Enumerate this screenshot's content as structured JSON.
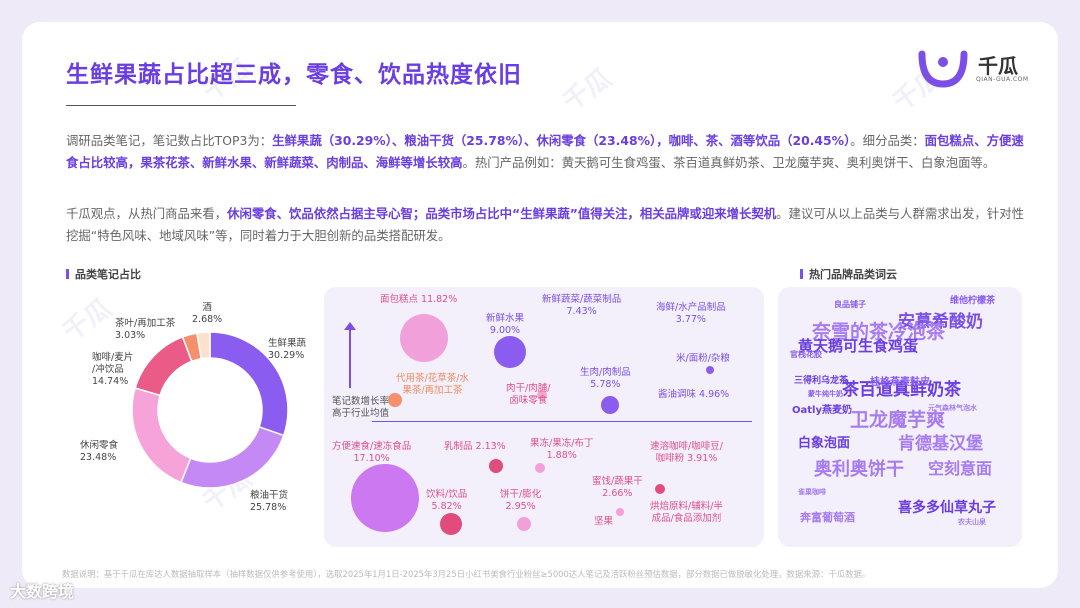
{
  "title": "生鲜果蔬占比超三成，零食、饮品热度依旧",
  "logo": {
    "name": "千瓜",
    "sub": "QIAN-GUA.COM"
  },
  "paragraph1": {
    "t1": "调研品类笔记，笔记数占比TOP3为：",
    "b1": "生鲜果蔬（30.29%）、粮油干货（25.78%）、休闲零食（23.48%），咖啡、茶、酒等饮品（20.45%）",
    "t2": "。细分品类：",
    "b2": "面包糕点、方便速食占比较高，果茶花茶、新鲜水果、新鲜蔬菜、肉制品、海鲜等增长较高",
    "t3": "。热门产品例如：黄天鹅可生食鸡蛋、茶百道真鲜奶茶、卫龙魔芋爽、奥利奥饼干、白象泡面等。"
  },
  "paragraph2": {
    "t1": "千瓜观点，从热门商品来看，",
    "b1": "休闲零食、饮品依然占据主导心智；品类市场占比中“生鲜果蔬”值得关注，相关品牌或迎来增长契机",
    "t2": "。建议可从以上品类与人群需求出发，针对性挖掘“特色风味、地域风味”等，同时着力于大胆创新的品类搭配研发。"
  },
  "section_left": "品类笔记占比",
  "section_right": "热门品牌品类词云",
  "pie": {
    "slices": [
      {
        "name": "生鲜果蔬",
        "pct": "30.29%",
        "value": 30.29,
        "color": "#8a5cf0"
      },
      {
        "name": "粮油干货",
        "pct": "25.78%",
        "value": 25.78,
        "color": "#c489f4"
      },
      {
        "name": "休闲零食",
        "pct": "23.48%",
        "value": 23.48,
        "color": "#f5a3d8"
      },
      {
        "name_l1": "咖啡/麦片",
        "name_l2": "/冲饮品",
        "pct": "14.74%",
        "value": 14.74,
        "color": "#ea5b87"
      },
      {
        "name": "茶叶/再加工茶",
        "pct": "3.03%",
        "value": 3.03,
        "color": "#f4916c"
      },
      {
        "name": "酒",
        "pct": "2.68%",
        "value": 2.68,
        "color": "#fde1cf"
      }
    ]
  },
  "bubbles": {
    "axis_label_l1": "笔记数增长率",
    "axis_label_l2": "高于行业均值",
    "items": [
      {
        "label_l1": "面包糕点 11.82%",
        "label_l2": "",
        "color": "#f2a0d9",
        "tone": "pink"
      },
      {
        "label_l1": "新鲜水果",
        "label_l2": "9.00%",
        "color": "#8a5cf0",
        "tone": "purple"
      },
      {
        "label_l1": "新鲜蔬菜/蔬菜制品",
        "label_l2": "7.43%",
        "color": "#8a5cf0",
        "tone": "purple"
      },
      {
        "label_l1": "海鲜/水产品制品",
        "label_l2": "3.77%",
        "color": "#8a5cf0",
        "tone": "purple"
      },
      {
        "label_l1": "米/面粉/杂粮",
        "label_l2": "",
        "color": "#8a5cf0",
        "tone": "purple"
      },
      {
        "label_l1": "代用茶/花草茶/水",
        "label_l2": "果茶/再加工茶",
        "color": "#f4916c",
        "tone": "orange"
      },
      {
        "label_l1": "肉干/肉脯/",
        "label_l2": "卤味零食",
        "color": "#f4a8c8",
        "tone": "pink"
      },
      {
        "label_l1": "生肉/肉制品",
        "label_l2": "5.78%",
        "color": "#8a5cf0",
        "tone": "purple"
      },
      {
        "label_l1": "酱油调味 4.96%",
        "label_l2": "",
        "color": "#8a5cf0",
        "tone": "purple"
      },
      {
        "label_l1": "方便速食/速冻食品",
        "label_l2": "17.10%",
        "color": "#cc78f0",
        "tone": "pink"
      },
      {
        "label_l1": "乳制品 2.13%",
        "label_l2": "",
        "color": "#e24c7d",
        "tone": "pink"
      },
      {
        "label_l1": "果冻/果冻/布丁",
        "label_l2": "1.88%",
        "color": "#f2a0d9",
        "tone": "pink"
      },
      {
        "label_l1": "速溶咖啡/咖啡豆/",
        "label_l2": "咖啡粉 3.91%",
        "color": "#e24c7d",
        "tone": "pink"
      },
      {
        "label_l1": "饮料/饮品",
        "label_l2": "5.82%",
        "color": "#e24c7d",
        "tone": "pink"
      },
      {
        "label_l1": "饼干/膨化",
        "label_l2": "2.95%",
        "color": "#f2a0d9",
        "tone": "pink"
      },
      {
        "label_l1": "蜜饯/蔬果干",
        "label_l2": "2.66%",
        "color": "#f2a0d9",
        "tone": "pink"
      },
      {
        "label_l1": "坚果",
        "label_l2": "",
        "color": "#f2a0d9",
        "tone": "pink"
      },
      {
        "label_l1": "烘焙原料/辅料/半",
        "label_l2": "成品/食品添加剂",
        "color": "#f2a0d9",
        "tone": "pink"
      }
    ]
  },
  "wordcloud": [
    "安慕希酸奶",
    "奈雪的茶冷泡茶",
    "黄天鹅可生食鸡蛋",
    "茶百道真鲜奶茶",
    "卫龙魔芋爽",
    "白象泡面",
    "肯德基汉堡",
    "奥利奥饼干",
    "空刻意面",
    "喜多多仙草丸子",
    "奔富葡萄酒",
    "桂格燕麦麸皮",
    "Oatly燕麦奶",
    "三得利乌龙茶",
    "维他柠檬茶",
    "良品铺子",
    "官栈花胶",
    "元气森林气泡水",
    "蒙牛纯牛奶",
    "雀巢咖啡",
    "农夫山泉"
  ],
  "footnote": "数据说明：基于千瓜在库达人数据抽取样本（抽样数据仅供参考使用），选取2025年1月1日-2025年3月25日小红书美食行业粉丝≥5000达人笔记及活跃粉丝预估数据，部分数据已做脱敏化处理，数据来源：千瓜数据。",
  "brand": "大数跨境",
  "watermark": "千瓜"
}
